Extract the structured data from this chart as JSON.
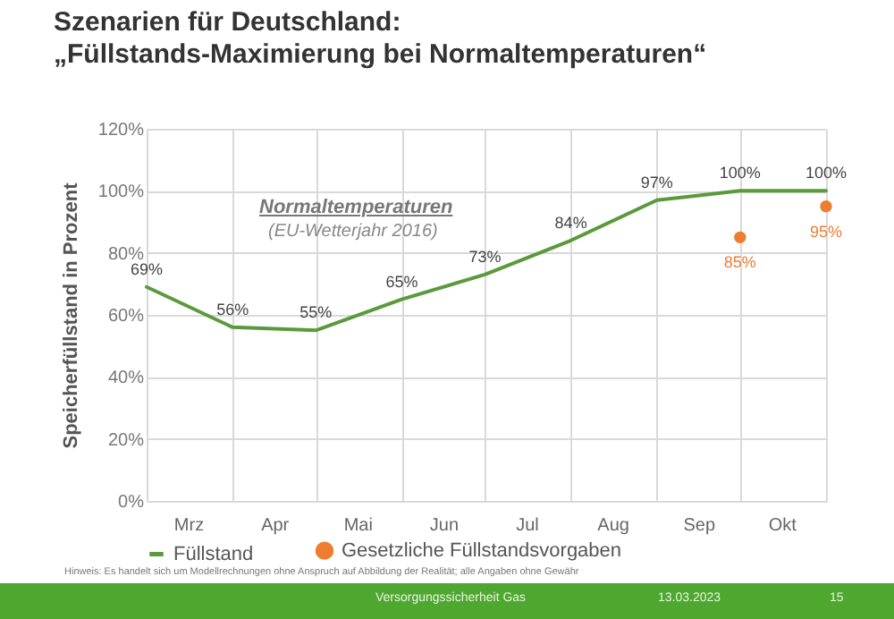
{
  "chart_data": {
    "type": "line",
    "title": "Szenarien für Deutschland:\n„Füllstands-Maximierung bei Normaltemperaturen“",
    "ylabel": "Speicherfüllstand in Prozent",
    "x": [
      "--03-01",
      "--04-01",
      "--05-01",
      "--06-01",
      "--07-01",
      "--08-01",
      "--09-01",
      "--10-01",
      "--11-01"
    ],
    "xlim": [
      "--03-01",
      "--11-01"
    ],
    "xticks": [
      {
        "value": "--03-01",
        "label": null
      },
      {
        "value": "--03-16",
        "label": "Mrz"
      },
      {
        "value": "--04-01",
        "label": null
      },
      {
        "value": "--04-16",
        "label": "Apr"
      },
      {
        "value": "--05-01",
        "label": null
      },
      {
        "value": "--05-16",
        "label": "Mai"
      },
      {
        "value": "--06-01",
        "label": null
      },
      {
        "value": "--06-16",
        "label": "Jun"
      },
      {
        "value": "--07-01",
        "label": null
      },
      {
        "value": "--07-16",
        "label": "Jul"
      },
      {
        "value": "--08-01",
        "label": null
      },
      {
        "value": "--08-16",
        "label": "Aug"
      },
      {
        "value": "--09-01",
        "label": null
      },
      {
        "value": "--09-16",
        "label": "Sep"
      },
      {
        "value": "--10-01",
        "label": null
      },
      {
        "value": "--10-16",
        "label": "Okt"
      },
      {
        "value": "--11-01",
        "label": null
      }
    ],
    "ylim": [
      0,
      120
    ],
    "yticks": [
      {
        "value": 0,
        "label": "0%"
      },
      {
        "value": 20,
        "label": "20%"
      },
      {
        "value": 40,
        "label": "40%"
      },
      {
        "value": 60,
        "label": "60%"
      },
      {
        "value": 80,
        "label": "80%"
      },
      {
        "value": 100,
        "label": "100%"
      },
      {
        "value": 120,
        "label": "120%"
      }
    ],
    "series": [
      {
        "name": "Füllstand",
        "type": "line",
        "color": "#5b9a3c",
        "values": [
          69,
          56,
          55,
          65,
          73,
          84,
          97,
          100,
          100
        ],
        "value_labels": [
          "69%",
          "56%",
          "55%",
          "65%",
          "73%",
          "84%",
          "97%",
          "100%",
          "100%"
        ]
      },
      {
        "name": "Gesetzliche Füllstandsvorgaben",
        "type": "scatter",
        "color": "#ed7d31",
        "x": [
          "--10-01",
          "--11-01"
        ],
        "values": [
          85,
          95
        ],
        "value_labels": [
          "85%",
          "95%"
        ]
      }
    ],
    "grid": true,
    "legend": "bottom",
    "annotations": [
      "Normaltemperaturen",
      "(EU-Wetterjahr 2016)",
      "Hinweis: Es handelt sich um Modellrechnungen ohne Anspruch auf Abbildung der Realität; alle Angaben ohne Gewähr",
      "Versorgungssicherheit Gas",
      "13.03.2023",
      "15"
    ]
  }
}
